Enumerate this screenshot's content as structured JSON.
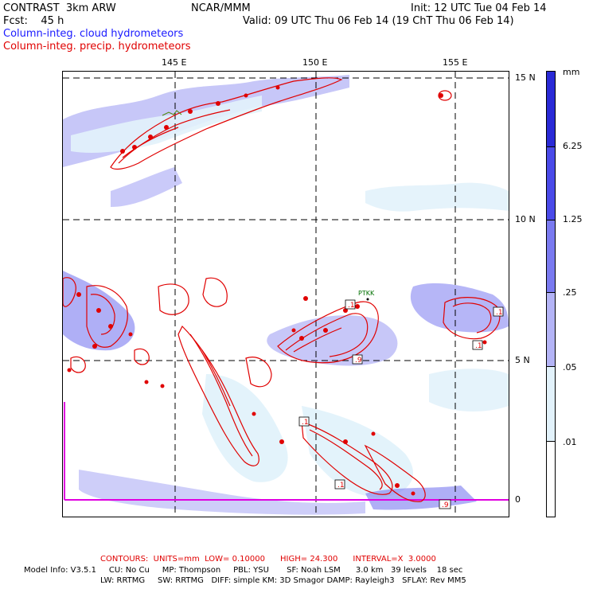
{
  "header": {
    "title": "CONTRAST  3km ARW",
    "forecast": "Fcst:    45 h",
    "institution": "NCAR/MMM",
    "init": "Init: 12 UTC Tue 04 Feb 14",
    "valid": "Valid: 09 UTC Thu 06 Feb 14 (19 ChT Thu 06 Feb 14)"
  },
  "legend": {
    "cloud": "Column-integ. cloud hydrometeors",
    "precip": "Column-integ. precip. hydrometeors",
    "cloud_color": "#1a1aff",
    "precip_color": "#e00000"
  },
  "map": {
    "lon_labels": [
      "145 E",
      "150 E",
      "155 E"
    ],
    "lat_labels": [
      "15 N",
      "10 N",
      "5 N",
      "0"
    ],
    "station_label": "PTKK",
    "contour_labels": [
      ".1",
      ".1",
      ".9",
      ".1",
      ".1",
      ".1",
      ".9"
    ]
  },
  "colorbar": {
    "unit": "mm",
    "labels": [
      "6.25",
      "1.25",
      ".25",
      ".05",
      ".01"
    ],
    "colors": [
      "#2a2ad6",
      "#4a4ae8",
      "#7a7af0",
      "#b4b4f6",
      "#e2f2fb",
      "#ffffff"
    ]
  },
  "footer": {
    "contours": "CONTOURS:  UNITS=mm  LOW= 0.10000      HIGH= 24.300      INTERVAL=X  3.0000",
    "model_line1": "Model Info: V3.5.1     CU: No Cu     MP: Thompson     PBL: YSU       SF: Noah LSM      3.0 km   39 levels    18 sec",
    "model_line2": "LW: RRTMG     SW: RRTMG   DIFF: simple KM: 3D Smagor DAMP: Rayleigh3   SFLAY: Rev MM5"
  }
}
